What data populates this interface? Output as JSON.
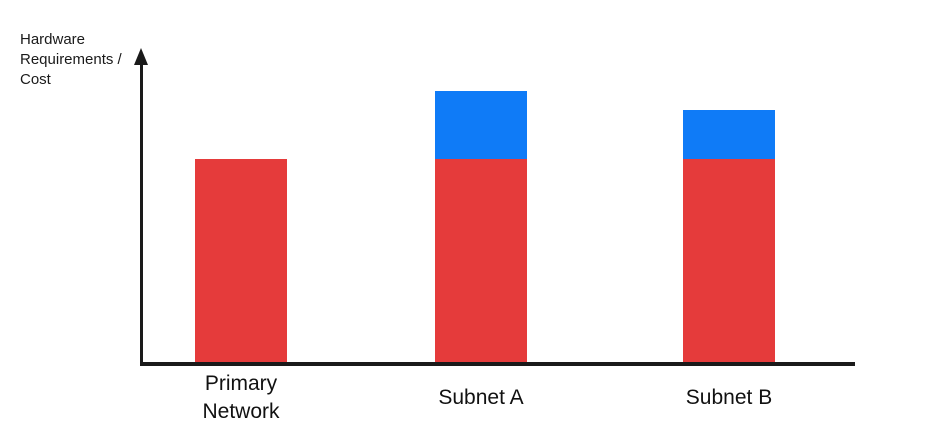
{
  "page": {
    "background": "#ffffff"
  },
  "axis": {
    "ylabel_display": "Hardware\nRequirements /\nCost"
  },
  "colors": {
    "red": "#E53B3B",
    "blue": "#0F7BF7",
    "axis": "#1a1a1a",
    "text": "#111111"
  },
  "chart_data": {
    "type": "bar",
    "stacked": true,
    "title": "",
    "xlabel": "",
    "ylabel": "Hardware Requirements / Cost",
    "categories": [
      "Primary Network",
      "Subnet A",
      "Subnet B"
    ],
    "series": [
      {
        "name": "red",
        "color": "#E53B3B",
        "values": [
          66.5,
          66.5,
          66.5
        ]
      },
      {
        "name": "blue",
        "color": "#0F7BF7",
        "values": [
          0,
          22.5,
          16
        ]
      }
    ],
    "ylim": [
      0,
      100
    ],
    "value_scale": "relative heights - chart shows no numeric ticks or gridlines",
    "grid": false,
    "legend": "none"
  }
}
